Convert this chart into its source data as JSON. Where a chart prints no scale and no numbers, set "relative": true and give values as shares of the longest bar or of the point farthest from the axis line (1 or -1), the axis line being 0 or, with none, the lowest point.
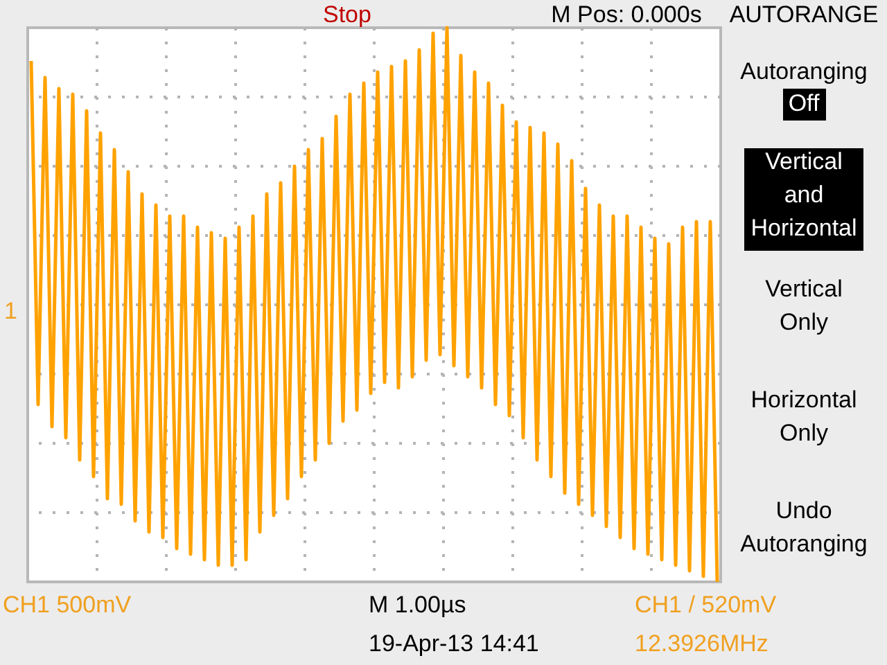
{
  "chart_data": {
    "type": "line",
    "relative": true,
    "categories": [
      null,
      null,
      null,
      null,
      null,
      null,
      null,
      null,
      null,
      null,
      null,
      null,
      null,
      null,
      null,
      null,
      null,
      null,
      null,
      null,
      null,
      null,
      null,
      null,
      null,
      null,
      null,
      null,
      null,
      null,
      null,
      null,
      null,
      null,
      null,
      null,
      null,
      null,
      null,
      null,
      null,
      null,
      null,
      null,
      null,
      null,
      null,
      null,
      null,
      null,
      null,
      null,
      null,
      null,
      null,
      null,
      null,
      null,
      null,
      null,
      null,
      null,
      null,
      null,
      null,
      null,
      null,
      null,
      null,
      null,
      null,
      null,
      null,
      null,
      null,
      null,
      null,
      null,
      null,
      null,
      null,
      null,
      null,
      null,
      null,
      null,
      null,
      null,
      null,
      null,
      null,
      null,
      null,
      null,
      null,
      null,
      null,
      null,
      null,
      null
    ],
    "series": [
      {
        "color": "#ffa200",
        "values": [
          0.94,
          0.32,
          0.91,
          0.28,
          0.89,
          0.26,
          0.88,
          0.22,
          0.85,
          0.19,
          0.81,
          0.15,
          0.78,
          0.14,
          0.74,
          0.11,
          0.7,
          0.09,
          0.68,
          0.08,
          0.66,
          0.06,
          0.66,
          0.05,
          0.64,
          0.04,
          0.63,
          0.03,
          0.62,
          0.03,
          0.64,
          0.04,
          0.66,
          0.09,
          0.7,
          0.12,
          0.72,
          0.15,
          0.75,
          0.19,
          0.78,
          0.22,
          0.8,
          0.25,
          0.84,
          0.29,
          0.88,
          0.31,
          0.9,
          0.34,
          0.92,
          0.36,
          0.93,
          0.35,
          0.94,
          0.37,
          0.96,
          0.4,
          0.99,
          0.41,
          1.0,
          0.39,
          0.95,
          0.37,
          0.92,
          0.35,
          0.9,
          0.32,
          0.86,
          0.3,
          0.83,
          0.26,
          0.82,
          0.22,
          0.81,
          0.19,
          0.79,
          0.16,
          0.76,
          0.14,
          0.71,
          0.12,
          0.68,
          0.1,
          0.66,
          0.08,
          0.66,
          0.06,
          0.64,
          0.05,
          0.62,
          0.04,
          0.61,
          0.03,
          0.64,
          0.02,
          0.65,
          0.01,
          0.65,
          0.0
        ]
      }
    ],
    "grid": true,
    "marker": "none",
    "line_style": "solid",
    "annotations": [
      "Stop",
      "M Pos: 0.000s",
      "AUTORANGE",
      "Autoranging",
      "Off",
      "Vertical and Horizontal",
      "Vertical Only",
      "Horizontal Only",
      "Undo Autoranging",
      "CH1  500mV",
      "M 1.00µs",
      "CH1 / 520mV",
      "19-Apr-13 14:41",
      "12.3926MHz",
      "1"
    ]
  }
}
